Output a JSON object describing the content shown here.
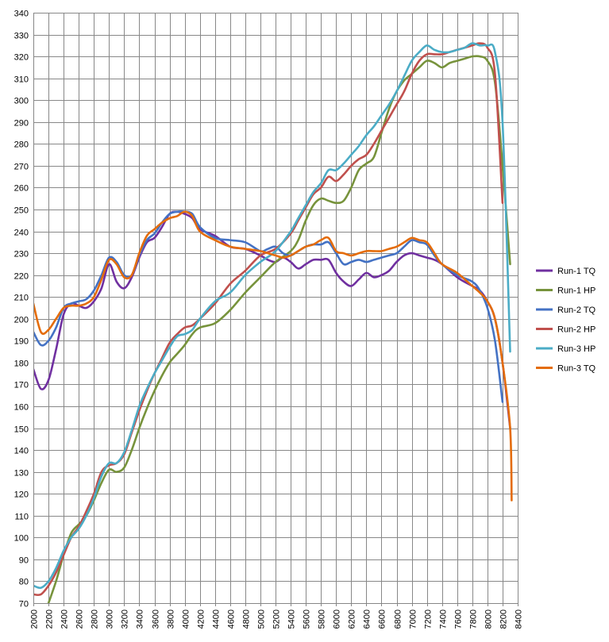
{
  "chart_data": {
    "type": "line",
    "title": "",
    "xlabel": "",
    "ylabel": "",
    "xlim": [
      2000,
      8400
    ],
    "ylim": [
      70,
      340
    ],
    "x_ticks": [
      2000,
      2200,
      2400,
      2600,
      2800,
      3000,
      3200,
      3400,
      3600,
      3800,
      4000,
      4200,
      4400,
      4600,
      4800,
      5000,
      5200,
      5400,
      5600,
      5800,
      6000,
      6200,
      6400,
      6600,
      6800,
      7000,
      7200,
      7400,
      7600,
      7800,
      8000,
      8200,
      8400
    ],
    "y_ticks": [
      70,
      80,
      90,
      100,
      110,
      120,
      130,
      140,
      150,
      160,
      170,
      180,
      190,
      200,
      210,
      220,
      230,
      240,
      250,
      260,
      270,
      280,
      290,
      300,
      310,
      320,
      330,
      340
    ],
    "grid": "horizontal and vertical",
    "legend_position": "right",
    "series": [
      {
        "name": "Run-1 TQ",
        "color": "#7030A0",
        "x": [
          2000,
          2100,
          2200,
          2300,
          2400,
          2500,
          2600,
          2700,
          2800,
          2900,
          3000,
          3100,
          3200,
          3300,
          3400,
          3500,
          3600,
          3700,
          3800,
          3900,
          4000,
          4100,
          4200,
          4400,
          4600,
          4800,
          5000,
          5100,
          5200,
          5300,
          5400,
          5500,
          5600,
          5700,
          5800,
          5900,
          6000,
          6100,
          6200,
          6300,
          6400,
          6500,
          6600,
          6700,
          6800,
          6900,
          7000,
          7100,
          7200,
          7300,
          7400,
          7600,
          7800,
          7900,
          8000,
          8100,
          8200,
          8300
        ],
        "y": [
          177,
          168,
          172,
          186,
          202,
          207,
          206,
          205,
          208,
          214,
          225,
          217,
          214,
          219,
          228,
          235,
          237,
          242,
          248,
          249,
          248,
          246,
          241,
          238,
          233,
          232,
          229,
          227,
          226,
          228,
          226,
          223,
          225,
          227,
          227,
          227,
          221,
          217,
          215,
          218,
          221,
          219,
          220,
          222,
          226,
          229,
          230,
          229,
          228,
          227,
          225,
          219,
          215,
          213,
          208,
          200,
          180,
          150
        ]
      },
      {
        "name": "Run-1 HP",
        "color": "#77933C",
        "x": [
          2200,
          2300,
          2400,
          2500,
          2600,
          2700,
          2800,
          2900,
          3000,
          3100,
          3200,
          3300,
          3400,
          3500,
          3600,
          3700,
          3800,
          3900,
          4000,
          4100,
          4200,
          4400,
          4600,
          4800,
          5000,
          5200,
          5400,
          5500,
          5600,
          5700,
          5800,
          5900,
          6000,
          6100,
          6200,
          6300,
          6400,
          6500,
          6600,
          6700,
          6800,
          6900,
          7000,
          7100,
          7200,
          7300,
          7400,
          7500,
          7600,
          7700,
          7800,
          7900,
          8000,
          8100,
          8200,
          8300
        ],
        "y": [
          70,
          80,
          92,
          102,
          106,
          110,
          117,
          125,
          131,
          130,
          132,
          140,
          150,
          159,
          167,
          174,
          180,
          184,
          188,
          193,
          196,
          198,
          204,
          212,
          219,
          226,
          231,
          236,
          245,
          252,
          255,
          254,
          253,
          254,
          260,
          268,
          271,
          274,
          285,
          296,
          304,
          309,
          312,
          315,
          318,
          317,
          315,
          317,
          318,
          319,
          320,
          320,
          318,
          308,
          270,
          225
        ]
      },
      {
        "name": "Run-2 TQ",
        "color": "#4472C4",
        "x": [
          2000,
          2100,
          2200,
          2300,
          2400,
          2500,
          2600,
          2700,
          2800,
          2900,
          3000,
          3100,
          3200,
          3300,
          3400,
          3500,
          3600,
          3700,
          3800,
          3900,
          4000,
          4100,
          4200,
          4400,
          4600,
          4800,
          5000,
          5100,
          5200,
          5300,
          5400,
          5500,
          5600,
          5700,
          5800,
          5900,
          6000,
          6100,
          6200,
          6300,
          6400,
          6500,
          6600,
          6700,
          6800,
          6900,
          7000,
          7100,
          7200,
          7300,
          7400,
          7600,
          7800,
          7900,
          8000,
          8100,
          8200
        ],
        "y": [
          194,
          188,
          190,
          196,
          205,
          207,
          208,
          209,
          213,
          220,
          228,
          226,
          220,
          220,
          229,
          236,
          239,
          244,
          248,
          249,
          249,
          248,
          242,
          237,
          236,
          235,
          231,
          232,
          233,
          230,
          229,
          231,
          233,
          234,
          234,
          235,
          230,
          225,
          226,
          227,
          226,
          227,
          228,
          229,
          230,
          233,
          236,
          235,
          234,
          229,
          225,
          220,
          217,
          213,
          205,
          190,
          162
        ]
      },
      {
        "name": "Run-2 HP",
        "color": "#C0504D",
        "x": [
          2000,
          2100,
          2200,
          2300,
          2400,
          2500,
          2600,
          2700,
          2800,
          2900,
          3000,
          3100,
          3200,
          3300,
          3400,
          3500,
          3600,
          3700,
          3800,
          3900,
          4000,
          4100,
          4200,
          4400,
          4600,
          4800,
          5000,
          5200,
          5400,
          5500,
          5600,
          5700,
          5800,
          5900,
          6000,
          6100,
          6200,
          6300,
          6400,
          6500,
          6600,
          6700,
          6800,
          6900,
          7000,
          7100,
          7200,
          7300,
          7400,
          7500,
          7600,
          7700,
          7800,
          7900,
          8000,
          8100,
          8200
        ],
        "y": [
          74,
          74,
          78,
          84,
          92,
          100,
          105,
          112,
          120,
          130,
          133,
          134,
          138,
          148,
          158,
          167,
          175,
          182,
          189,
          193,
          196,
          197,
          200,
          207,
          216,
          222,
          229,
          232,
          239,
          245,
          251,
          257,
          260,
          265,
          263,
          266,
          270,
          273,
          275,
          280,
          286,
          292,
          298,
          304,
          312,
          318,
          321,
          321,
          321,
          322,
          323,
          324,
          325,
          326,
          324,
          312,
          253
        ]
      },
      {
        "name": "Run-3 HP",
        "color": "#4BACC6",
        "x": [
          2000,
          2100,
          2200,
          2300,
          2400,
          2500,
          2600,
          2700,
          2800,
          2900,
          3000,
          3100,
          3200,
          3300,
          3400,
          3500,
          3600,
          3700,
          3800,
          3900,
          4000,
          4100,
          4200,
          4400,
          4600,
          4800,
          5000,
          5200,
          5400,
          5500,
          5600,
          5700,
          5800,
          5900,
          6000,
          6100,
          6200,
          6300,
          6400,
          6500,
          6600,
          6700,
          6800,
          6900,
          7000,
          7100,
          7200,
          7300,
          7400,
          7500,
          7600,
          7700,
          7800,
          7900,
          8000,
          8100,
          8200,
          8300
        ],
        "y": [
          78,
          77,
          80,
          86,
          94,
          100,
          104,
          110,
          118,
          128,
          134,
          134,
          139,
          149,
          160,
          168,
          175,
          181,
          187,
          192,
          193,
          195,
          200,
          208,
          212,
          220,
          226,
          231,
          240,
          246,
          252,
          258,
          262,
          268,
          268,
          271,
          275,
          279,
          284,
          288,
          293,
          298,
          304,
          311,
          318,
          322,
          325,
          323,
          322,
          322,
          323,
          324,
          326,
          325,
          325,
          322,
          290,
          185
        ]
      },
      {
        "name": "Run-3 TQ",
        "color": "#E46C0A",
        "x": [
          2000,
          2100,
          2200,
          2300,
          2400,
          2500,
          2600,
          2700,
          2800,
          2900,
          3000,
          3100,
          3200,
          3300,
          3400,
          3500,
          3600,
          3700,
          3800,
          3900,
          4000,
          4100,
          4200,
          4400,
          4600,
          4800,
          5000,
          5100,
          5200,
          5300,
          5400,
          5500,
          5600,
          5700,
          5800,
          5900,
          6000,
          6100,
          6200,
          6300,
          6400,
          6500,
          6600,
          6700,
          6800,
          6900,
          7000,
          7100,
          7200,
          7300,
          7400,
          7600,
          7800,
          7900,
          8000,
          8100,
          8200,
          8300,
          8320
        ],
        "y": [
          207,
          194,
          195,
          200,
          205,
          206,
          206,
          207,
          210,
          218,
          227,
          225,
          219,
          220,
          230,
          238,
          241,
          244,
          246,
          247,
          249,
          247,
          240,
          236,
          233,
          232,
          231,
          230,
          229,
          228,
          229,
          231,
          233,
          234,
          236,
          237,
          231,
          230,
          229,
          230,
          231,
          231,
          231,
          232,
          233,
          235,
          237,
          236,
          235,
          230,
          225,
          221,
          215,
          212,
          208,
          200,
          180,
          150,
          117
        ]
      }
    ]
  }
}
